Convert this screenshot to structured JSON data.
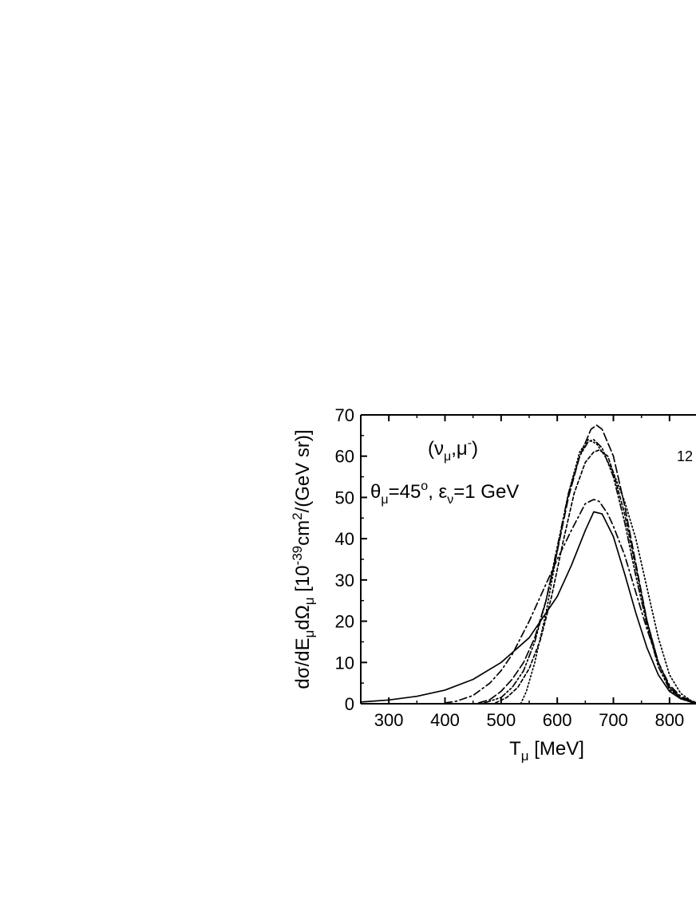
{
  "chart_data": {
    "type": "line",
    "xlim": [
      250,
      850
    ],
    "ylim": [
      0,
      70
    ],
    "x_ticks": [
      300,
      400,
      500,
      600,
      700,
      800
    ],
    "x_tick_labels": [
      "300",
      "400",
      "500",
      "600",
      "700",
      "800"
    ],
    "y_ticks": [
      0,
      10,
      20,
      30,
      40,
      50,
      60,
      70
    ],
    "y_tick_labels": [
      "0",
      "10",
      "20",
      "30",
      "40",
      "50",
      "60",
      "70"
    ],
    "xlabel": {
      "main": "T",
      "sub": "μ",
      "rest": " [MeV]"
    },
    "ylabel": {
      "p1": "dσ/dE",
      "s1": "μ",
      "p2": "dΩ",
      "s2": "μ",
      "p3": " [10",
      "e1": "-39",
      "p4": "cm",
      "e2": "2",
      "p5": "/(GeV sr)]"
    },
    "annotations": {
      "reaction": {
        "open": "(ν",
        "sub": "μ",
        "mid": ",μ",
        "sup": "-",
        "close": ")"
      },
      "kinematics": {
        "theta": "θ",
        "theta_sub": "μ",
        "theta_val": "=45",
        "deg": "o",
        "sep": ", ε",
        "eps_sub": "ν",
        "eps_val": "=1 GeV"
      },
      "partial_label": "12"
    },
    "grid": false,
    "legend": "none",
    "series": [
      {
        "style": "solid",
        "x": [
          250,
          300,
          350,
          400,
          450,
          500,
          550,
          600,
          625,
          650,
          665,
          680,
          700,
          720,
          740,
          760,
          780,
          800,
          820,
          840,
          850
        ],
        "y": [
          0.4,
          0.9,
          1.8,
          3.3,
          5.9,
          10.0,
          16.0,
          26.0,
          33.5,
          42.0,
          46.5,
          46.0,
          40.5,
          31.5,
          22.0,
          13.5,
          7.0,
          3.0,
          1.2,
          0.4,
          0.2
        ]
      },
      {
        "style": "dash-dot",
        "x": [
          400,
          420,
          450,
          480,
          500,
          520,
          550,
          580,
          600,
          625,
          650,
          665,
          675,
          690,
          700,
          720,
          740,
          760,
          780,
          800,
          820,
          840,
          850
        ],
        "y": [
          0.2,
          0.6,
          2.0,
          5.0,
          8.0,
          12.0,
          20.0,
          29.0,
          35.0,
          42.0,
          48.5,
          49.5,
          49.0,
          46.0,
          43.0,
          36.0,
          27.0,
          18.0,
          10.0,
          4.5,
          1.8,
          0.6,
          0.3
        ]
      },
      {
        "style": "dashed",
        "x": [
          460,
          480,
          500,
          520,
          540,
          560,
          580,
          600,
          620,
          640,
          660,
          670,
          680,
          700,
          720,
          740,
          760,
          780,
          800,
          820,
          840,
          850
        ],
        "y": [
          0.2,
          1.0,
          3.0,
          6.0,
          10.0,
          16.0,
          25.0,
          37.0,
          50.0,
          60.0,
          66.5,
          67.5,
          66.5,
          60.0,
          48.0,
          34.0,
          20.0,
          10.0,
          4.0,
          1.5,
          0.5,
          0.2
        ]
      },
      {
        "style": "dash-dot-dot",
        "x": [
          470,
          500,
          520,
          540,
          560,
          580,
          600,
          620,
          640,
          655,
          665,
          680,
          700,
          720,
          740,
          760,
          780,
          800,
          820,
          840,
          850
        ],
        "y": [
          0.2,
          1.5,
          4.0,
          8.0,
          15.0,
          25.0,
          38.0,
          51.0,
          60.0,
          63.5,
          64.0,
          62.0,
          55.0,
          44.0,
          31.0,
          19.0,
          9.0,
          3.5,
          1.2,
          0.3,
          0.1
        ]
      },
      {
        "style": "short-dash",
        "x": [
          490,
          510,
          530,
          550,
          570,
          590,
          610,
          630,
          650,
          665,
          675,
          690,
          700,
          720,
          740,
          760,
          780,
          800,
          820,
          840,
          850
        ],
        "y": [
          0.2,
          1.5,
          4.0,
          8.5,
          15.5,
          26.0,
          39.0,
          51.0,
          58.5,
          61.0,
          61.5,
          60.0,
          56.0,
          46.0,
          33.0,
          20.0,
          10.0,
          4.0,
          1.3,
          0.3,
          0.1
        ]
      },
      {
        "style": "dotted",
        "x": [
          535,
          545,
          560,
          580,
          600,
          620,
          640,
          655,
          670,
          685,
          700,
          720,
          740,
          760,
          780,
          800,
          820,
          840,
          850
        ],
        "y": [
          0.0,
          3.0,
          10.0,
          22.0,
          37.0,
          51.0,
          61.0,
          64.0,
          63.0,
          60.0,
          56.0,
          49.0,
          40.0,
          28.0,
          16.0,
          7.0,
          2.5,
          0.6,
          0.2
        ]
      }
    ]
  }
}
